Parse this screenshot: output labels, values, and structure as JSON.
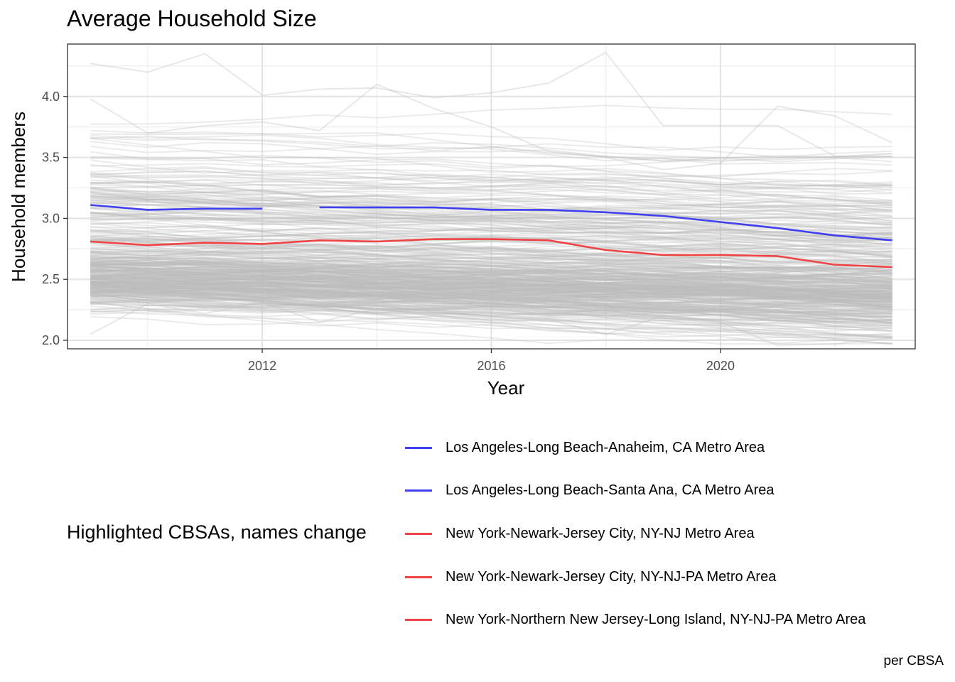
{
  "chart_data": {
    "type": "line",
    "title": "Average Household Size",
    "xlabel": "Year",
    "ylabel": "Household members",
    "caption": "per CBSA",
    "xlim": [
      2008.6,
      2023.4
    ],
    "ylim": [
      1.93,
      4.43
    ],
    "x_ticks": [
      "2012",
      "2016",
      "2020"
    ],
    "y_ticks": [
      "2.0",
      "2.5",
      "3.0",
      "3.5",
      "4.0"
    ],
    "grid": true,
    "legend": {
      "title": "Highlighted CBSAs, names change",
      "position": "bottom",
      "entries": [
        {
          "label": "Los Angeles-Long Beach-Anaheim, CA Metro Area",
          "color": "#4040ee"
        },
        {
          "label": "Los Angeles-Long Beach-Santa Ana, CA Metro Area",
          "color": "#4040ee"
        },
        {
          "label": "New York-Newark-Jersey City, NY-NJ Metro Area",
          "color": "#ee4444"
        },
        {
          "label": "New York-Newark-Jersey City, NY-NJ-PA Metro Area",
          "color": "#ee4444"
        },
        {
          "label": "New York-Northern New Jersey-Long Island, NY-NJ-PA Metro Area",
          "color": "#ee4444"
        }
      ]
    },
    "series": [
      {
        "name": "Los Angeles-Long Beach-Santa Ana, CA Metro Area",
        "color": "#4040ee",
        "x": [
          2009,
          2010,
          2011,
          2012
        ],
        "y": [
          3.11,
          3.07,
          3.08,
          3.08
        ]
      },
      {
        "name": "Los Angeles-Long Beach-Anaheim, CA Metro Area",
        "color": "#4040ee",
        "x": [
          2013,
          2014,
          2015,
          2016,
          2017,
          2018,
          2019,
          2020,
          2021,
          2022,
          2023
        ],
        "y": [
          3.09,
          3.09,
          3.09,
          3.07,
          3.07,
          3.05,
          3.02,
          2.97,
          2.92,
          2.86,
          2.82
        ]
      },
      {
        "name": "New York-Northern New Jersey-Long Island, NY-NJ-PA Metro Area",
        "color": "#ee4444",
        "x": [
          2009,
          2010,
          2011,
          2012
        ],
        "y": [
          2.81,
          2.78,
          2.8,
          2.79
        ]
      },
      {
        "name": "New York-Newark-Jersey City, NY-NJ-PA Metro Area",
        "color": "#ee4444",
        "x": [
          2012,
          2013,
          2014,
          2015,
          2016,
          2017,
          2018,
          2019,
          2020,
          2021,
          2022
        ],
        "y": [
          2.79,
          2.82,
          2.81,
          2.83,
          2.83,
          2.82,
          2.74,
          2.7,
          2.7,
          2.69,
          2.62
        ]
      },
      {
        "name": "New York-Newark-Jersey City, NY-NJ Metro Area",
        "color": "#ee4444",
        "x": [
          2022,
          2023
        ],
        "y": [
          2.62,
          2.6
        ]
      }
    ],
    "background_series": {
      "color": "#bdbdbd",
      "count": 380,
      "x": [
        2009,
        2010,
        2011,
        2012,
        2013,
        2014,
        2015,
        2016,
        2017,
        2018,
        2019,
        2020,
        2021,
        2022,
        2023
      ],
      "notable_traces": [
        {
          "y": [
            4.27,
            4.2,
            4.35,
            4.01,
            4.06,
            4.07,
            3.99,
            4.03,
            4.11,
            4.36,
            3.76,
            3.76,
            3.76,
            3.51,
            3.51
          ]
        },
        {
          "y": [
            3.98,
            3.7,
            3.76,
            3.79,
            3.72,
            4.1,
            3.9,
            3.75,
            3.55,
            3.5,
            3.4,
            3.45,
            3.92,
            3.84,
            3.62
          ]
        },
        {
          "y": [
            2.05,
            2.3,
            2.22,
            2.31,
            2.15,
            2.26,
            2.2,
            2.19,
            2.17,
            2.05,
            2.2,
            2.15,
            1.96,
            1.97,
            2.02
          ]
        }
      ]
    }
  }
}
